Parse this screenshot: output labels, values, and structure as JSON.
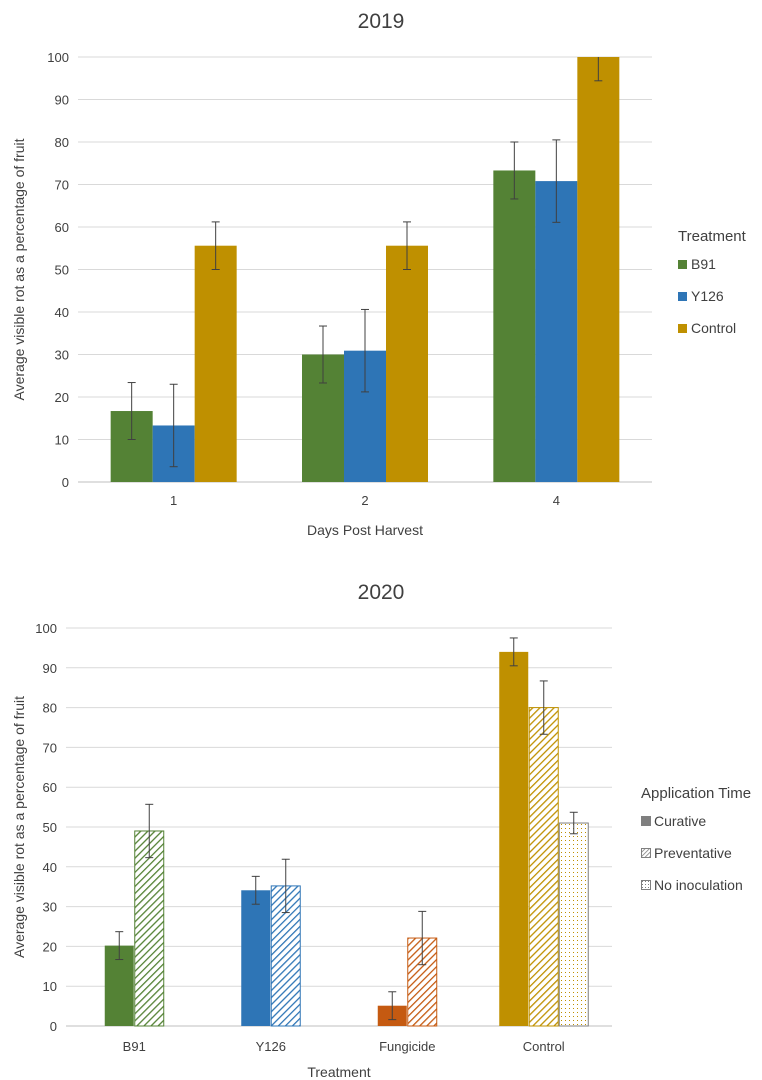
{
  "chart_data": [
    {
      "type": "bar",
      "title": "2019",
      "xlabel": "Days Post Harvest",
      "ylabel": "Average visible rot as a percentage of fruit",
      "ylim": [
        0,
        100
      ],
      "yticks": [
        0,
        10,
        20,
        30,
        40,
        50,
        60,
        70,
        80,
        90,
        100
      ],
      "categories": [
        "1",
        "2",
        "4"
      ],
      "legend_title": "Treatment",
      "legend_position": "right",
      "grid": true,
      "series": [
        {
          "name": "B91",
          "color": "#548235",
          "values": [
            16.7,
            30.0,
            73.3
          ],
          "errors": [
            6.7,
            6.7,
            6.7
          ]
        },
        {
          "name": "Y126",
          "color": "#2E75B6",
          "values": [
            13.3,
            30.9,
            70.8
          ],
          "errors": [
            9.7,
            9.7,
            9.7
          ]
        },
        {
          "name": "Control",
          "color": "#BF9000",
          "values": [
            55.6,
            55.6,
            100
          ],
          "errors": [
            5.6,
            5.6,
            5.6
          ]
        }
      ]
    },
    {
      "type": "bar",
      "title": "2020",
      "xlabel": "Treatment",
      "ylabel": "Average visible rot as a percentage of fruit",
      "ylim": [
        0,
        100
      ],
      "yticks": [
        0,
        10,
        20,
        30,
        40,
        50,
        60,
        70,
        80,
        90,
        100
      ],
      "categories": [
        "B91",
        "Y126",
        "Fungicide",
        "Control"
      ],
      "legend_title": "Application Time",
      "legend_position": "right",
      "grid": true,
      "category_colors": [
        "#548235",
        "#2E75B6",
        "#C55A11",
        "#BF9000"
      ],
      "series": [
        {
          "name": "Curative",
          "pattern": "solid",
          "values": [
            20.2,
            34.1,
            5.1,
            94.0
          ],
          "errors": [
            3.5,
            3.5,
            3.5,
            3.5
          ]
        },
        {
          "name": "Preventative",
          "pattern": "hatch",
          "values": [
            49.0,
            35.2,
            22.1,
            80.0
          ],
          "errors": [
            6.7,
            6.7,
            6.7,
            6.7
          ]
        },
        {
          "name": "No inoculation",
          "pattern": "dots",
          "values": [
            null,
            null,
            null,
            51.0
          ],
          "errors": [
            null,
            null,
            null,
            2.7
          ]
        }
      ]
    }
  ]
}
